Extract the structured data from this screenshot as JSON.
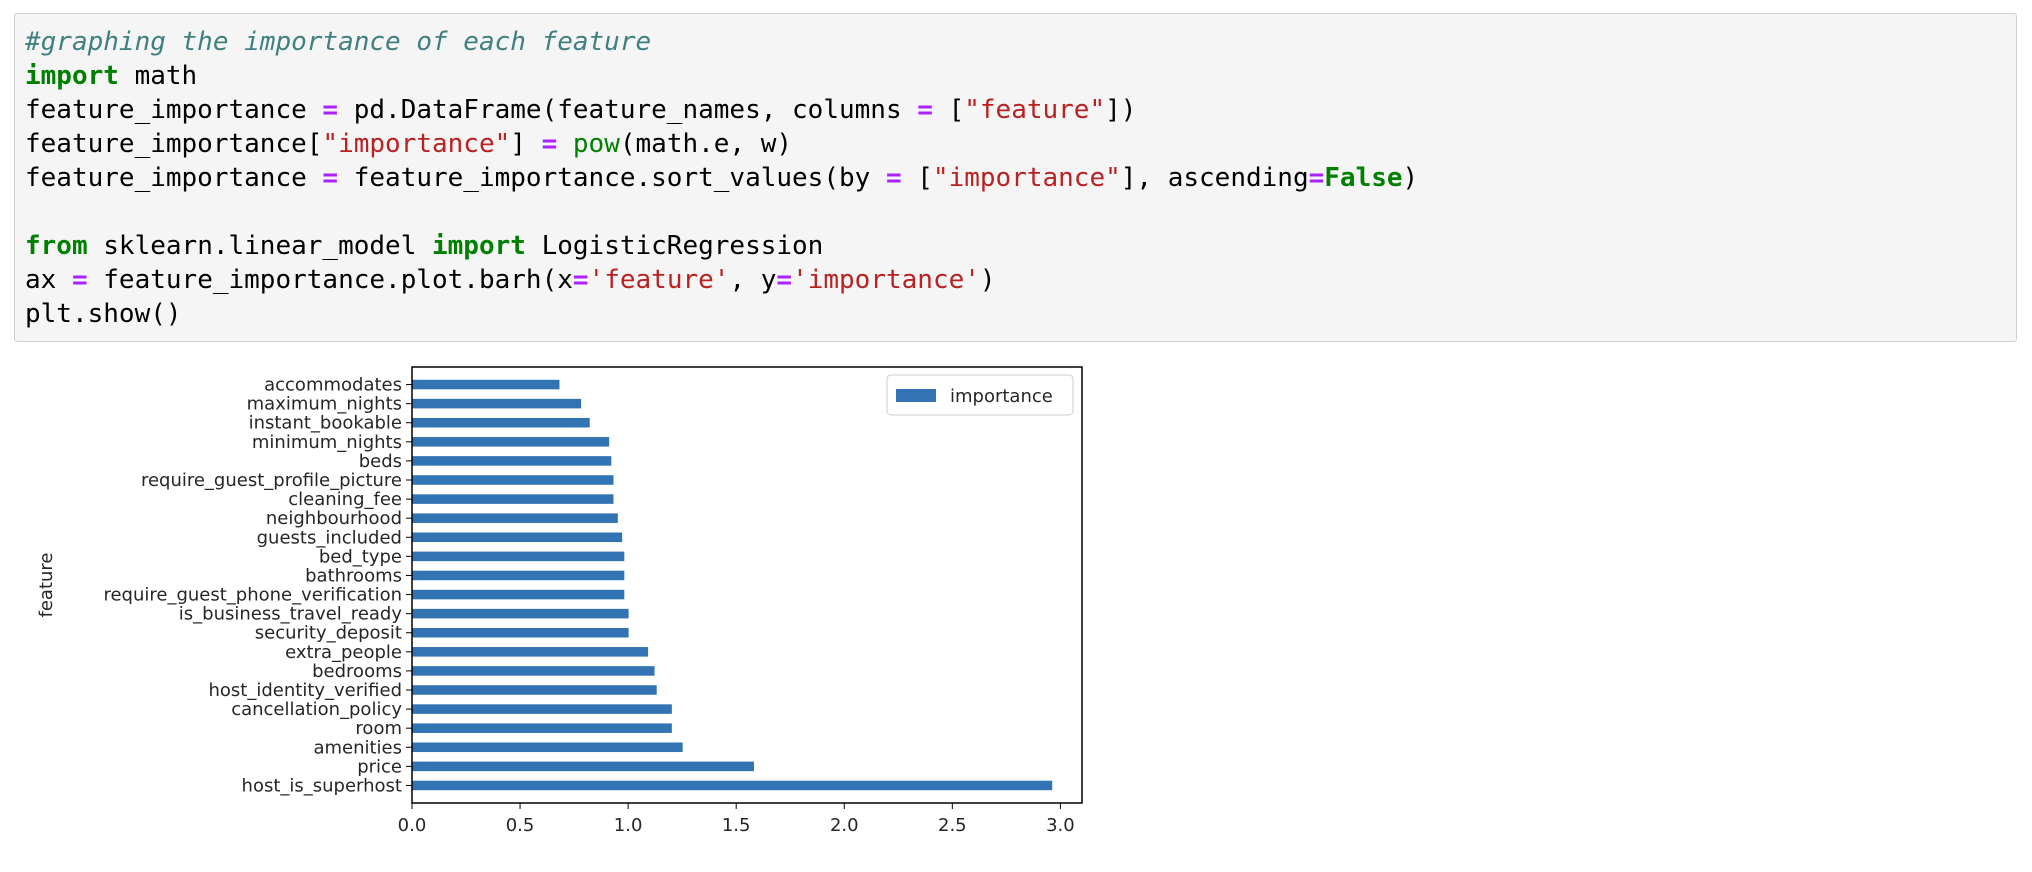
{
  "code_cell": {
    "lines": [
      [
        {
          "t": "comment",
          "v": "#graphing the importance of each feature"
        }
      ],
      [
        {
          "t": "kw",
          "v": "import"
        },
        {
          "t": "plain",
          "v": " math"
        }
      ],
      [
        {
          "t": "plain",
          "v": "feature_importance "
        },
        {
          "t": "op",
          "v": "="
        },
        {
          "t": "plain",
          "v": " pd.DataFrame(feature_names, columns "
        },
        {
          "t": "op",
          "v": "="
        },
        {
          "t": "plain",
          "v": " ["
        },
        {
          "t": "str",
          "v": "\"feature\""
        },
        {
          "t": "plain",
          "v": "])"
        }
      ],
      [
        {
          "t": "plain",
          "v": "feature_importance["
        },
        {
          "t": "str",
          "v": "\"importance\""
        },
        {
          "t": "plain",
          "v": "] "
        },
        {
          "t": "op",
          "v": "="
        },
        {
          "t": "plain",
          "v": " "
        },
        {
          "t": "builtin",
          "v": "pow"
        },
        {
          "t": "plain",
          "v": "(math.e, w)"
        }
      ],
      [
        {
          "t": "plain",
          "v": "feature_importance "
        },
        {
          "t": "op",
          "v": "="
        },
        {
          "t": "plain",
          "v": " feature_importance.sort_values(by "
        },
        {
          "t": "op",
          "v": "="
        },
        {
          "t": "plain",
          "v": " ["
        },
        {
          "t": "str",
          "v": "\"importance\""
        },
        {
          "t": "plain",
          "v": "], ascending"
        },
        {
          "t": "op",
          "v": "="
        },
        {
          "t": "kw",
          "v": "False"
        },
        {
          "t": "plain",
          "v": ")"
        }
      ],
      [],
      [
        {
          "t": "kw",
          "v": "from"
        },
        {
          "t": "plain",
          "v": " sklearn.linear_model "
        },
        {
          "t": "kw",
          "v": "import"
        },
        {
          "t": "plain",
          "v": " LogisticRegression"
        }
      ],
      [
        {
          "t": "plain",
          "v": "ax "
        },
        {
          "t": "op",
          "v": "="
        },
        {
          "t": "plain",
          "v": " feature_importance.plot.barh(x"
        },
        {
          "t": "op",
          "v": "="
        },
        {
          "t": "str",
          "v": "'feature'"
        },
        {
          "t": "plain",
          "v": ", y"
        },
        {
          "t": "op",
          "v": "="
        },
        {
          "t": "str",
          "v": "'importance'"
        },
        {
          "t": "plain",
          "v": ")"
        }
      ],
      [
        {
          "t": "plain",
          "v": "plt.show()"
        }
      ]
    ]
  },
  "chart_data": {
    "type": "bar",
    "orientation": "horizontal",
    "title": "",
    "xlabel": "",
    "ylabel": "feature",
    "xlim": [
      0,
      3.1
    ],
    "xticks": [
      "0.0",
      "0.5",
      "1.0",
      "1.5",
      "2.0",
      "2.5",
      "3.0"
    ],
    "legend": {
      "label": "importance",
      "placement": "upper right"
    },
    "bar_color": "#3274b3",
    "categories": [
      "host_is_superhost",
      "price",
      "amenities",
      "room",
      "cancellation_policy",
      "host_identity_verified",
      "bedrooms",
      "extra_people",
      "security_deposit",
      "is_business_travel_ready",
      "require_guest_phone_verification",
      "bathrooms",
      "bed_type",
      "guests_included",
      "neighbourhood",
      "cleaning_fee",
      "require_guest_profile_picture",
      "beds",
      "minimum_nights",
      "instant_bookable",
      "maximum_nights",
      "accommodates"
    ],
    "values": [
      2.96,
      1.58,
      1.25,
      1.2,
      1.2,
      1.13,
      1.12,
      1.09,
      1.0,
      1.0,
      0.98,
      0.98,
      0.98,
      0.97,
      0.95,
      0.93,
      0.93,
      0.92,
      0.91,
      0.82,
      0.78,
      0.68
    ]
  }
}
